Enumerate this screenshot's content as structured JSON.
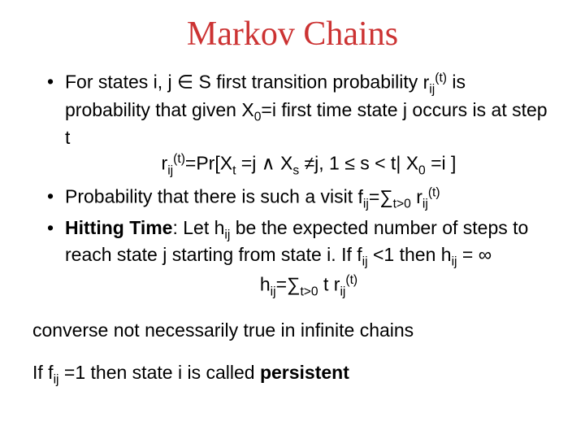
{
  "title": {
    "text": "Markov Chains",
    "color": "#cc3333"
  },
  "bullets": [
    {
      "text_html": "For states <span class=\"cs\">i, j</span> ∈ <span class=\"cs\">S</span> first transition probability <span class=\"cs\">r<span class=\"sub\">ij</span><span class=\"sup\">(t)</span></span> is probability that given <span class=\"cs\">X<span class=\"sub\">0</span>=i</span> first time state <span class=\"cs\">j</span> occurs is at step <span class=\"cs\">t</span>",
      "formula_html": "r<span class=\"sub\">ij</span><span class=\"sup\">(t)</span>=Pr[X<span class=\"sub\">t</span> =j ∧ X<span class=\"sub\">s</span> ≠j, 1 ≤ s < t| X<span class=\"sub\">0</span> =i ]"
    },
    {
      "text_html": "Probability that there is such a visit <span class=\"cs\">f<span class=\"sub\">ij</span>=∑<span class=\"sub\">t&gt;0</span> r<span class=\"sub\">ij</span><span class=\"sup\">(t)</span></span>"
    },
    {
      "text_html": "<span class=\"bold\">Hitting Time</span>: Let <span class=\"cs\">h<span class=\"sub\">ij</span></span> be the expected number of steps to reach state <span class=\"cs\">j</span> starting from state <span class=\"cs\">i</span>. If <span class=\"cs\">f<span class=\"sub\">ij</span> &lt;1</span> then <span class=\"cs\">h<span class=\"sub\">ij</span> =</span> ∞",
      "formula_html": "h<span class=\"sub\">ij</span>=∑<span class=\"sub\">t&gt;0</span> t r<span class=\"sub\">ij</span><span class=\"sup\">(t)</span>"
    }
  ],
  "para1_html": "converse not necessarily true in infinite chains",
  "para2_html": "If <span class=\"cs\">f<span class=\"sub\">ij</span> =1</span> then state <span class=\"cs\">i</span> is called <span class=\"bold\">persistent</span>",
  "colors": {
    "title": "#cc3333",
    "text": "#000000",
    "background": "#ffffff"
  },
  "fonts": {
    "title": "Times New Roman",
    "body": "Arial",
    "math": "Comic Sans MS"
  },
  "fontsize": {
    "title": 42,
    "body": 23
  }
}
